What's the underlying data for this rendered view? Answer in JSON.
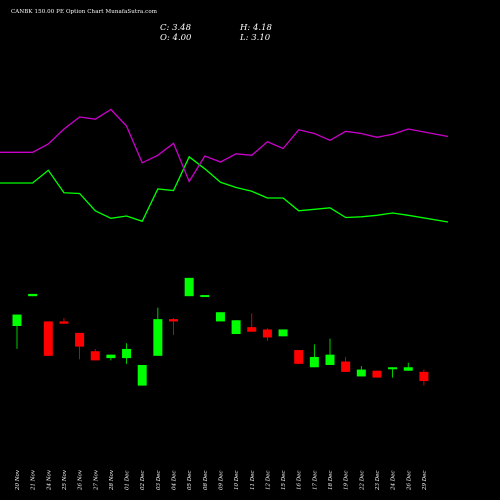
{
  "header": {
    "title": "CANBK 150.00  PE Option  Chart MunafaSutra.com",
    "close": "C: 3.48",
    "open": "O: 4.00",
    "high": "H: 4.18",
    "low": "L: 3.10"
  },
  "colors": {
    "background": "#000000",
    "up": "#00ff00",
    "down": "#ff0000",
    "line_green": "#00ff00",
    "line_magenta": "#cc00cc",
    "text": "#ffffff"
  },
  "chart_data": {
    "type": "candlestick",
    "categories": [
      "20 Nov",
      "21 Nov",
      "24 Nov",
      "25 Nov",
      "26 Nov",
      "27 Nov",
      "28 Nov",
      "01 Dec",
      "02 Dec",
      "03 Dec",
      "04 Dec",
      "05 Dec",
      "08 Dec",
      "09 Dec",
      "10 Dec",
      "11 Dec",
      "12 Dec",
      "15 Dec",
      "16 Dec",
      "17 Dec",
      "18 Dec",
      "19 Dec",
      "22 Dec",
      "23 Dec",
      "24 Dec",
      "26 Dec",
      "29 Dec"
    ],
    "candles": [
      {
        "open": 4.1,
        "high": 4.6,
        "low": 3.1,
        "close": 4.6
      },
      {
        "open": 5.4,
        "high": 5.5,
        "low": 5.4,
        "close": 5.5
      },
      {
        "open": 4.3,
        "high": 4.3,
        "low": 2.8,
        "close": 2.8
      },
      {
        "open": 4.3,
        "high": 4.45,
        "low": 4.2,
        "close": 4.2
      },
      {
        "open": 3.8,
        "high": 3.8,
        "low": 2.65,
        "close": 3.2
      },
      {
        "open": 3.0,
        "high": 3.1,
        "low": 2.6,
        "close": 2.6
      },
      {
        "open": 2.7,
        "high": 2.85,
        "low": 2.6,
        "close": 2.85
      },
      {
        "open": 2.7,
        "high": 3.35,
        "low": 2.45,
        "close": 3.1
      },
      {
        "open": 1.5,
        "high": 2.4,
        "low": 1.5,
        "close": 2.4
      },
      {
        "open": 2.8,
        "high": 4.9,
        "low": 2.8,
        "close": 4.4
      },
      {
        "open": 4.4,
        "high": 4.45,
        "low": 3.7,
        "close": 4.3
      },
      {
        "open": 5.4,
        "high": 6.2,
        "low": 5.4,
        "close": 6.2
      },
      {
        "open": 5.45,
        "high": 5.45,
        "low": 5.45,
        "close": 5.45
      },
      {
        "open": 4.3,
        "high": 4.7,
        "low": 4.3,
        "close": 4.7
      },
      {
        "open": 3.75,
        "high": 4.35,
        "low": 3.75,
        "close": 4.35
      },
      {
        "open": 4.05,
        "high": 4.65,
        "low": 3.85,
        "close": 3.85
      },
      {
        "open": 3.95,
        "high": 4.0,
        "low": 3.45,
        "close": 3.6
      },
      {
        "open": 3.65,
        "high": 3.95,
        "low": 3.65,
        "close": 3.95
      },
      {
        "open": 3.05,
        "high": 3.05,
        "low": 2.45,
        "close": 2.45
      },
      {
        "open": 2.3,
        "high": 3.3,
        "low": 2.3,
        "close": 2.75
      },
      {
        "open": 2.4,
        "high": 3.55,
        "low": 2.4,
        "close": 2.85
      },
      {
        "open": 2.55,
        "high": 2.75,
        "low": 2.1,
        "close": 2.1
      },
      {
        "open": 1.9,
        "high": 2.35,
        "low": 1.9,
        "close": 2.2
      },
      {
        "open": 2.15,
        "high": 2.15,
        "low": 1.85,
        "close": 1.85
      },
      {
        "open": 2.3,
        "high": 2.3,
        "low": 1.85,
        "close": 2.3
      },
      {
        "open": 2.15,
        "high": 2.5,
        "low": 2.15,
        "close": 2.3
      },
      {
        "open": 2.1,
        "high": 2.2,
        "low": 1.5,
        "close": 1.7
      }
    ],
    "ylim": [
      0,
      8.2
    ],
    "overlay_lines": [
      {
        "color": "#00ff00",
        "values": [
          3.8,
          3.8,
          4.65,
          3.15,
          3.1,
          1.95,
          1.45,
          1.6,
          1.25,
          3.4,
          3.3,
          5.55,
          4.75,
          3.85,
          3.5,
          3.25,
          2.8,
          2.8,
          1.95,
          2.05,
          2.15,
          1.5,
          1.55,
          1.65,
          1.8,
          1.65,
          1.2
        ]
      },
      {
        "color": "#cc00cc",
        "values": [
          5.85,
          5.85,
          6.4,
          7.4,
          8.2,
          8.05,
          8.7,
          7.6,
          5.15,
          5.65,
          6.45,
          3.9,
          5.6,
          5.2,
          5.75,
          5.65,
          6.55,
          6.1,
          7.35,
          7.1,
          6.65,
          7.25,
          7.1,
          6.85,
          7.05,
          7.4,
          6.9
        ]
      }
    ],
    "grid": false,
    "legend": "none"
  }
}
